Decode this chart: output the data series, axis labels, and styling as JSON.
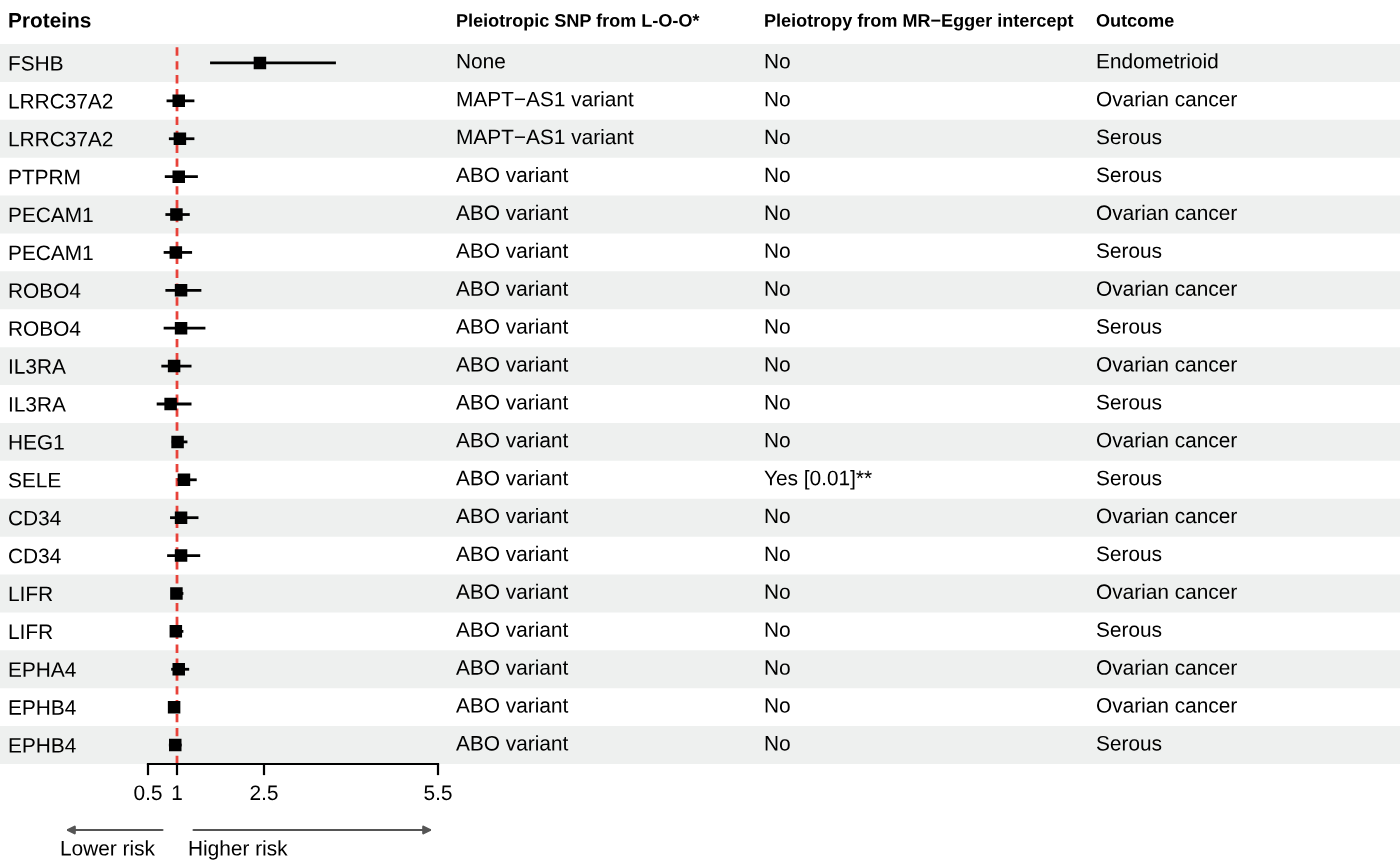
{
  "chart_data": {
    "type": "scatter",
    "orientation": "horizontal",
    "ylabel": "Proteins",
    "categories": [
      "FSHB",
      "LRRC37A2",
      "LRRC37A2",
      "PTPRM",
      "PECAM1",
      "PECAM1",
      "ROBO4",
      "ROBO4",
      "IL3RA",
      "IL3RA",
      "HEG1",
      "SELE",
      "CD34",
      "CD34",
      "LIFR",
      "LIFR",
      "EPHA4",
      "EPHB4",
      "EPHB4"
    ],
    "values": [
      2.43,
      1.03,
      1.05,
      1.03,
      0.99,
      0.98,
      1.07,
      1.07,
      0.95,
      0.89,
      1.01,
      1.12,
      1.07,
      1.07,
      0.99,
      0.98,
      1.03,
      0.95,
      0.97
    ],
    "errors": [
      [
        1.57,
        3.74
      ],
      [
        0.82,
        1.3
      ],
      [
        0.86,
        1.3
      ],
      [
        0.79,
        1.36
      ],
      [
        0.8,
        1.22
      ],
      [
        0.77,
        1.26
      ],
      [
        0.8,
        1.42
      ],
      [
        0.77,
        1.49
      ],
      [
        0.73,
        1.25
      ],
      [
        0.65,
        1.25
      ],
      [
        0.91,
        1.18
      ],
      [
        1.01,
        1.34
      ],
      [
        0.88,
        1.37
      ],
      [
        0.83,
        1.4
      ],
      [
        0.91,
        1.11
      ],
      [
        0.88,
        1.11
      ],
      [
        0.9,
        1.21
      ],
      [
        0.86,
        1.05
      ],
      [
        0.86,
        1.08
      ]
    ],
    "color": "#000000",
    "marker": "square",
    "xlim": [
      0.5,
      5.5
    ],
    "xticks": [
      0.5,
      1,
      2.5,
      5.5
    ],
    "ref_lines": [
      {
        "axis": "x",
        "value": 1,
        "color": "#e8423a",
        "line_style": "dashed"
      }
    ],
    "annotations": [
      "Pleiotropic SNP from L-O-O*",
      "Pleiotropy from MR−Egger intercept",
      "Outcome",
      "None",
      "No",
      "Endometrioid",
      "MAPT−AS1 variant",
      "No",
      "Ovarian cancer",
      "MAPT−AS1 variant",
      "No",
      "Serous",
      "ABO variant",
      "No",
      "Serous",
      "ABO variant",
      "No",
      "Ovarian cancer",
      "ABO variant",
      "No",
      "Serous",
      "ABO variant",
      "No",
      "Ovarian cancer",
      "ABO variant",
      "No",
      "Serous",
      "ABO variant",
      "No",
      "Ovarian cancer",
      "ABO variant",
      "No",
      "Serous",
      "ABO variant",
      "No",
      "Ovarian cancer",
      "ABO variant",
      "Yes [0.01]**",
      "Serous",
      "ABO variant",
      "No",
      "Ovarian cancer",
      "ABO variant",
      "No",
      "Serous",
      "ABO variant",
      "No",
      "Ovarian cancer",
      "ABO variant",
      "No",
      "Serous",
      "ABO variant",
      "No",
      "Ovarian cancer",
      "ABO variant",
      "No",
      "Ovarian cancer",
      "ABO variant",
      "No",
      "Serous",
      "Lower risk",
      "Higher risk"
    ]
  }
}
